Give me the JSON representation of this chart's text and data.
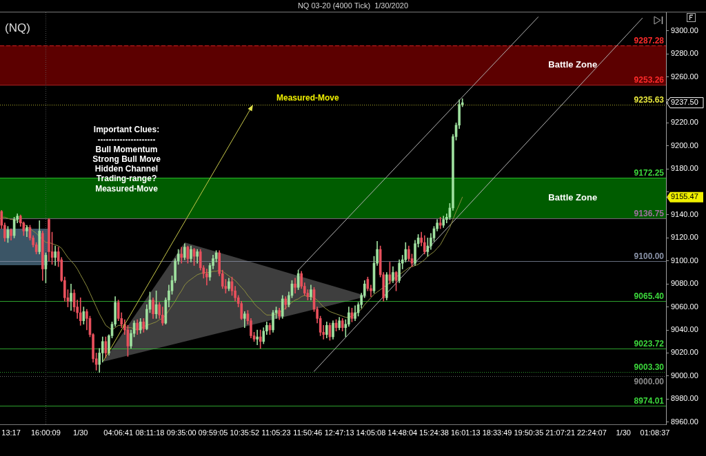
{
  "chart_data": {
    "type": "candlestick",
    "title": "NQ 03-20 (4000 Tick)  1/30/2020",
    "subtitle": "(NQ)",
    "categories": [
      null,
      null,
      null,
      "13:17",
      null,
      null,
      null,
      null,
      null,
      null,
      null,
      null,
      null,
      null,
      "16:00:09",
      null,
      null,
      null,
      null,
      null,
      null,
      null,
      null,
      null,
      null,
      "1/30",
      null,
      null,
      null,
      null,
      null,
      null,
      null,
      null,
      null,
      null,
      null,
      "04:06:41",
      null,
      null,
      null,
      null,
      null,
      null,
      null,
      null,
      null,
      "08:11:18",
      null,
      null,
      null,
      null,
      null,
      null,
      null,
      null,
      null,
      "09:35:00",
      null,
      null,
      null,
      null,
      null,
      null,
      null,
      null,
      null,
      "09:59:05",
      null,
      null,
      null,
      null,
      null,
      null,
      null,
      null,
      null,
      "10:35:52",
      null,
      null,
      null,
      null,
      null,
      null,
      null,
      null,
      null,
      "11:05:23",
      null,
      null,
      null,
      null,
      null,
      null,
      null,
      null,
      null,
      "11:50:46",
      null,
      null,
      null,
      null,
      null,
      null,
      null,
      null,
      null,
      "12:47:13",
      null,
      null,
      null,
      null,
      null,
      null,
      null,
      null,
      null,
      "14:05:08",
      null,
      null,
      null,
      null,
      null,
      null,
      null,
      null,
      null,
      "14:48:04",
      null,
      null,
      null,
      null,
      null,
      null,
      null,
      null,
      null,
      "15:24:38",
      null,
      null,
      null,
      null,
      null,
      null,
      null,
      null,
      null,
      "16:01:13",
      null,
      null,
      null,
      null,
      null,
      null,
      null,
      null,
      null,
      "18:33:49",
      null,
      null,
      null,
      null,
      null,
      null,
      null,
      null,
      null,
      "19:50:35",
      null,
      null,
      null,
      null,
      null,
      null,
      null,
      null,
      null,
      "21:07:21",
      null,
      null,
      null,
      null,
      null,
      null,
      null,
      null,
      null,
      "22:24:07",
      null,
      null,
      null,
      null,
      null,
      null,
      null,
      null,
      null,
      "1/30",
      null,
      null,
      null,
      null,
      null,
      null,
      null,
      null,
      null,
      "01:08:37",
      null,
      null,
      null
    ],
    "ohlc": [
      [
        9143,
        9144,
        9128,
        9131
      ],
      [
        9131,
        9133,
        9117,
        9120
      ],
      [
        9120,
        9130,
        9116,
        9127
      ],
      [
        9127,
        9128,
        9118,
        9122
      ],
      [
        9122,
        9138,
        9120,
        9136
      ],
      [
        9136,
        9141,
        9133,
        9139
      ],
      [
        9139,
        9140,
        9130,
        9133
      ],
      [
        9133,
        9134,
        9122,
        9126
      ],
      [
        9126,
        9131,
        9121,
        9129
      ],
      [
        9129,
        9131,
        9118,
        9120
      ],
      [
        9120,
        9122,
        9112,
        9114
      ],
      [
        9114,
        9116,
        9106,
        9108
      ],
      [
        9108,
        9135,
        9106,
        9126
      ],
      [
        9124,
        9126,
        9083,
        9093
      ],
      [
        9093,
        9107,
        9081,
        9105
      ],
      [
        9136,
        9137,
        9100,
        9108
      ],
      [
        9108,
        9125,
        9097,
        9103
      ],
      [
        9103,
        9113,
        9096,
        9108
      ],
      [
        9108,
        9112,
        9095,
        9100
      ],
      [
        9101,
        9103,
        9082,
        9083
      ],
      [
        9083,
        9086,
        9065,
        9068
      ],
      [
        9068,
        9075,
        9060,
        9065
      ],
      [
        9065,
        9080,
        9057,
        9072
      ],
      [
        9072,
        9075,
        9056,
        9060
      ],
      [
        9060,
        9066,
        9050,
        9055
      ],
      [
        9055,
        9068,
        9044,
        9048
      ],
      [
        9048,
        9060,
        9045,
        9056
      ],
      [
        9056,
        9058,
        9040,
        9050
      ],
      [
        9050,
        9052,
        9034,
        9036
      ],
      [
        9036,
        9037,
        9012,
        9015
      ],
      [
        9015,
        9020,
        9005,
        9010
      ],
      [
        9010,
        9024,
        9003,
        9020
      ],
      [
        9020,
        9034,
        9012,
        9030
      ],
      [
        9030,
        9034,
        9016,
        9020
      ],
      [
        9020,
        9036,
        9018,
        9035
      ],
      [
        9035,
        9047,
        9033,
        9045
      ],
      [
        9045,
        9069,
        9043,
        9064
      ],
      [
        9064,
        9066,
        9048,
        9050
      ],
      [
        9050,
        9055,
        9042,
        9045
      ],
      [
        9045,
        9049,
        9036,
        9040
      ],
      [
        9040,
        9044,
        9017,
        9026
      ],
      [
        9026,
        9040,
        9024,
        9037
      ],
      [
        9037,
        9048,
        9034,
        9046
      ],
      [
        9046,
        9049,
        9036,
        9040
      ],
      [
        9040,
        9050,
        9037,
        9047
      ],
      [
        9047,
        9050,
        9038,
        9041
      ],
      [
        9041,
        9062,
        9040,
        9058
      ],
      [
        9058,
        9073,
        9055,
        9066
      ],
      [
        9066,
        9068,
        9050,
        9054
      ],
      [
        9054,
        9074,
        9050,
        9062
      ],
      [
        9062,
        9064,
        9050,
        9053
      ],
      [
        9053,
        9060,
        9044,
        9046
      ],
      [
        9046,
        9068,
        9045,
        9066
      ],
      [
        9066,
        9079,
        9060,
        9074
      ],
      [
        9074,
        9087,
        9071,
        9083
      ],
      [
        9083,
        9102,
        9081,
        9100
      ],
      [
        9100,
        9110,
        9097,
        9106
      ],
      [
        9106,
        9112,
        9098,
        9103
      ],
      [
        9103,
        9115,
        9101,
        9112
      ],
      [
        9112,
        9113,
        9098,
        9102
      ],
      [
        9102,
        9113,
        9099,
        9110
      ],
      [
        9110,
        9111,
        9096,
        9104
      ],
      [
        9104,
        9110,
        9098,
        9108
      ],
      [
        9108,
        9110,
        9092,
        9094
      ],
      [
        9094,
        9096,
        9085,
        9089
      ],
      [
        9089,
        9093,
        9079,
        9086
      ],
      [
        9086,
        9098,
        9083,
        9096
      ],
      [
        9096,
        9105,
        9093,
        9102
      ],
      [
        9102,
        9109,
        9099,
        9107
      ],
      [
        9107,
        9109,
        9087,
        9089
      ],
      [
        9089,
        9092,
        9076,
        9078
      ],
      [
        9078,
        9084,
        9072,
        9076
      ],
      [
        9076,
        9085,
        9074,
        9082
      ],
      [
        9082,
        9086,
        9070,
        9074
      ],
      [
        9074,
        9078,
        9065,
        9068
      ],
      [
        9068,
        9070,
        9060,
        9063
      ],
      [
        9063,
        9065,
        9049,
        9050
      ],
      [
        9050,
        9056,
        9042,
        9054
      ],
      [
        9054,
        9057,
        9045,
        9048
      ],
      [
        9048,
        9050,
        9033,
        9035
      ],
      [
        9035,
        9038,
        9030,
        9032
      ],
      [
        9032,
        9040,
        9027,
        9034
      ],
      [
        9034,
        9040,
        9024,
        9030
      ],
      [
        9030,
        9042,
        9028,
        9039
      ],
      [
        9039,
        9047,
        9036,
        9044
      ],
      [
        9044,
        9046,
        9036,
        9040
      ],
      [
        9040,
        9057,
        9038,
        9055
      ],
      [
        9055,
        9060,
        9050,
        9057
      ],
      [
        9057,
        9059,
        9049,
        9052
      ],
      [
        9052,
        9070,
        9050,
        9067
      ],
      [
        9067,
        9069,
        9058,
        9062
      ],
      [
        9062,
        9073,
        9060,
        9070
      ],
      [
        9070,
        9083,
        9068,
        9080
      ],
      [
        9080,
        9085,
        9072,
        9077
      ],
      [
        9077,
        9092,
        9075,
        9089
      ],
      [
        9089,
        9091,
        9076,
        9078
      ],
      [
        9078,
        9081,
        9070,
        9072
      ],
      [
        9072,
        9075,
        9066,
        9069
      ],
      [
        9069,
        9079,
        9066,
        9075
      ],
      [
        9075,
        9077,
        9056,
        9058
      ],
      [
        9058,
        9060,
        9046,
        9050
      ],
      [
        9050,
        9052,
        9035,
        9038
      ],
      [
        9038,
        9044,
        9032,
        9036
      ],
      [
        9036,
        9047,
        9033,
        9044
      ],
      [
        9044,
        9046,
        9031,
        9034
      ],
      [
        9034,
        9048,
        9032,
        9046
      ],
      [
        9046,
        9049,
        9039,
        9042
      ],
      [
        9042,
        9051,
        9040,
        9048
      ],
      [
        9048,
        9050,
        9039,
        9042
      ],
      [
        9042,
        9049,
        9034,
        9045
      ],
      [
        9045,
        9060,
        9043,
        9055
      ],
      [
        9055,
        9059,
        9047,
        9050
      ],
      [
        9050,
        9061,
        9048,
        9055
      ],
      [
        9055,
        9064,
        9052,
        9062
      ],
      [
        9062,
        9072,
        9059,
        9070
      ],
      [
        9070,
        9083,
        9068,
        9080
      ],
      [
        9084,
        9086,
        9074,
        9076
      ],
      [
        9076,
        9079,
        9069,
        9074
      ],
      [
        9074,
        9104,
        9072,
        9098
      ],
      [
        9098,
        9117,
        9096,
        9110
      ],
      [
        9110,
        9113,
        9086,
        9088
      ],
      [
        9088,
        9090,
        9065,
        9068
      ],
      [
        9068,
        9090,
        9066,
        9088
      ],
      [
        9088,
        9099,
        9080,
        9083
      ],
      [
        9083,
        9095,
        9081,
        9090
      ],
      [
        9090,
        9091,
        9074,
        9083
      ],
      [
        9083,
        9101,
        9081,
        9098
      ],
      [
        9098,
        9105,
        9093,
        9101
      ],
      [
        9101,
        9116,
        9099,
        9110
      ],
      [
        9110,
        9113,
        9100,
        9102
      ],
      [
        9102,
        9106,
        9095,
        9098
      ],
      [
        9098,
        9118,
        9096,
        9115
      ],
      [
        9115,
        9123,
        9112,
        9120
      ],
      [
        9120,
        9125,
        9113,
        9116
      ],
      [
        9116,
        9122,
        9106,
        9108
      ],
      [
        9108,
        9120,
        9104,
        9113
      ],
      [
        9113,
        9124,
        9110,
        9120
      ],
      [
        9120,
        9130,
        9117,
        9128
      ],
      [
        9128,
        9136,
        9126,
        9133
      ],
      [
        9133,
        9138,
        9128,
        9131
      ],
      [
        9131,
        9139,
        9129,
        9136
      ],
      [
        9136,
        9141,
        9133,
        9138
      ],
      [
        9138,
        9150,
        9136,
        9146
      ],
      [
        9146,
        9210,
        9144,
        9208
      ],
      [
        9208,
        9220,
        9205,
        9218
      ],
      [
        9218,
        9240,
        9215,
        9236
      ],
      [
        9236,
        9241,
        9234,
        9237.5
      ],
      null,
      null,
      null,
      null,
      null,
      null,
      null,
      null,
      null,
      null,
      null,
      null,
      null,
      null,
      null,
      null,
      null,
      null,
      null,
      null,
      null,
      null,
      null,
      null,
      null,
      null,
      null,
      null,
      null,
      null,
      null,
      null,
      null,
      null,
      null,
      null,
      null,
      null,
      null,
      null,
      null,
      null,
      null,
      null,
      null,
      null,
      null,
      null,
      null,
      null,
      null,
      null,
      null,
      null,
      null,
      null,
      null,
      null,
      null,
      null,
      null,
      null,
      null,
      null
    ],
    "colors": [
      "#e8505c",
      "#e8505c",
      "#9fe09f",
      "#e8505c",
      "#9fe09f",
      "#9fe09f",
      "#e8505c",
      "#e8505c",
      "#9fe09f",
      "#e8505c",
      "#e8505c",
      "#e8505c",
      "#9fe09f",
      "#e8505c",
      "#9fe09f",
      "#e8505c",
      "#e8505c",
      "#9fe09f",
      "#e8505c",
      "#e8505c",
      "#e8505c",
      "#e8505c",
      "#9fe09f",
      "#e8505c",
      "#e8505c",
      "#e8505c",
      "#9fe09f",
      "#e8505c",
      "#e8505c",
      "#e8505c",
      "#e8505c",
      "#9fe09f",
      "#9fe09f",
      "#e8505c",
      "#9fe09f",
      "#9fe09f",
      "#9fe09f",
      "#e8505c",
      "#e8505c",
      "#e8505c",
      "#e8505c",
      "#9fe09f",
      "#9fe09f",
      "#e8505c",
      "#9fe09f",
      "#e8505c",
      "#9fe09f",
      "#9fe09f",
      "#e8505c",
      "#9fe09f",
      "#e8505c",
      "#e8505c",
      "#9fe09f",
      "#9fe09f",
      "#9fe09f",
      "#9fe09f",
      "#9fe09f",
      "#e8505c",
      "#9fe09f",
      "#e8505c",
      "#9fe09f",
      "#e8505c",
      "#9fe09f",
      "#e8505c",
      "#e8505c",
      "#e8505c",
      "#9fe09f",
      "#9fe09f",
      "#9fe09f",
      "#e8505c",
      "#e8505c",
      "#e8505c",
      "#9fe09f",
      "#e8505c",
      "#e8505c",
      "#e8505c",
      "#e8505c",
      "#9fe09f",
      "#e8505c",
      "#e8505c",
      "#e8505c",
      "#9fe09f",
      "#e8505c",
      "#9fe09f",
      "#9fe09f",
      "#e8505c",
      "#9fe09f",
      "#9fe09f",
      "#e8505c",
      "#9fe09f",
      "#e8505c",
      "#9fe09f",
      "#9fe09f",
      "#e8505c",
      "#9fe09f",
      "#e8505c",
      "#e8505c",
      "#e8505c",
      "#9fe09f",
      "#e8505c",
      "#e8505c",
      "#e8505c",
      "#e8505c",
      "#9fe09f",
      "#e8505c",
      "#9fe09f",
      "#e8505c",
      "#9fe09f",
      "#e8505c",
      "#9fe09f",
      "#9fe09f",
      "#e8505c",
      "#9fe09f",
      "#9fe09f",
      "#9fe09f",
      "#9fe09f",
      "#e8505c",
      "#e8505c",
      "#9fe09f",
      "#9fe09f",
      "#e8505c",
      "#e8505c",
      "#9fe09f",
      "#e8505c",
      "#9fe09f",
      "#e8505c",
      "#9fe09f",
      "#9fe09f",
      "#9fe09f",
      "#e8505c",
      "#e8505c",
      "#9fe09f",
      "#9fe09f",
      "#e8505c",
      "#e8505c",
      "#9fe09f",
      "#9fe09f",
      "#9fe09f",
      "#9fe09f",
      "#e8505c",
      "#9fe09f",
      "#9fe09f",
      "#9fe09f",
      "#9fe09f",
      "#9fe09f",
      "#9fe09f",
      "#9fe09f",
      null,
      null,
      null,
      null,
      null,
      null,
      null,
      null,
      null,
      null,
      null,
      null,
      null,
      null,
      null,
      null,
      null,
      null,
      null,
      null,
      null,
      null,
      null,
      null,
      null,
      null,
      null,
      null,
      null,
      null,
      null,
      null,
      null,
      null,
      null,
      null,
      null,
      null,
      null,
      null,
      null,
      null,
      null,
      null,
      null,
      null,
      null,
      null,
      null,
      null,
      null,
      null,
      null,
      null,
      null,
      null,
      null,
      null,
      null,
      null,
      null,
      null,
      null,
      null
    ],
    "series": [
      {
        "type": "line",
        "color": "#8e8e3e",
        "values": [
          9138,
          9138,
          9137,
          9136,
          9136,
          9135,
          9134,
          9132,
          9130,
          9128,
          9126,
          9124,
          9121,
          9119,
          9116,
          9116,
          9115,
          9114,
          9113,
          9111,
          9107,
          9103,
          9100,
          9097,
          9093,
          9088,
          9083,
          9078,
          9072,
          9066,
          9060,
          9054,
          9049,
          9044,
          9042,
          9040,
          9042,
          9044,
          9044,
          9043,
          9042,
          9042,
          9041,
          9040,
          9041,
          9043,
          9044,
          9045,
          9046,
          9047,
          9049,
          9050,
          9053,
          9057,
          9061,
          9065,
          9070,
          9074,
          9079,
          9082,
          9084,
          9086,
          9088,
          9089,
          9090,
          9090,
          9090,
          9091,
          9091,
          9092,
          9091,
          9089,
          9087,
          9085,
          9083,
          9080,
          9077,
          9074,
          9070,
          9067,
          9063,
          9060,
          9058,
          9055,
          9053,
          9053,
          9053,
          9054,
          9055,
          9057,
          9059,
          9062,
          9064,
          9066,
          9067,
          9069,
          9070,
          9069,
          9069,
          9068,
          9066,
          9063,
          9060,
          9058,
          9056,
          9055,
          9054,
          9053,
          9052,
          9051,
          9051,
          9052,
          9054,
          9056,
          9058,
          9062,
          9065,
          9068,
          9071,
          9073,
          9075,
          9077,
          9079,
          9081,
          9084,
          9086,
          9088,
          9090,
          9092,
          9094,
          9095,
          9096,
          9097,
          9099,
          9101,
          9104,
          9106,
          9108,
          9111,
          9114,
          9119,
          9124,
          9129,
          9136,
          9143,
          9149,
          9155.47,
          null,
          null,
          null,
          null,
          null,
          null,
          null,
          null,
          null,
          null,
          null,
          null,
          null,
          null,
          null,
          null,
          null,
          null,
          null,
          null,
          null,
          null,
          null,
          null,
          null,
          null,
          null,
          null,
          null,
          null,
          null,
          null,
          null,
          null,
          null,
          null,
          null,
          null,
          null,
          null,
          null,
          null,
          null,
          null,
          null,
          null,
          null,
          null,
          null,
          null,
          null,
          null,
          null,
          null,
          null,
          null,
          null,
          null,
          null,
          null,
          null,
          null,
          null,
          null
        ]
      },
      {
        "type": "line",
        "color": "#b4b4b4",
        "values": [
          null,
          null,
          null,
          null,
          null,
          null,
          null,
          null,
          null,
          null,
          null,
          null,
          null,
          null,
          null,
          null,
          null,
          null,
          null,
          null,
          null,
          null,
          null,
          null,
          null,
          null,
          null,
          null,
          null,
          null,
          null,
          null,
          null,
          null,
          null,
          null,
          null,
          null,
          null,
          null,
          null,
          null,
          null,
          null,
          null,
          null,
          null,
          null,
          null,
          null,
          null,
          null,
          null,
          null,
          null,
          null,
          null,
          null,
          null,
          null,
          null,
          null,
          null,
          null,
          null,
          null,
          null,
          null,
          null,
          null,
          null,
          null,
          null,
          null,
          null,
          null,
          null,
          null,
          null,
          null,
          null,
          null,
          null,
          null,
          null,
          null,
          null,
          null,
          null,
          null,
          null,
          null,
          null,
          null,
          9092,
          null,
          null,
          null,
          null,
          null,
          null,
          null,
          null,
          null,
          null,
          null,
          null,
          null,
          null,
          null,
          null,
          null,
          null,
          null,
          null,
          null,
          null,
          null,
          null,
          null,
          null,
          null,
          null,
          null,
          null,
          null,
          null,
          null,
          null,
          null,
          null,
          null,
          null,
          null,
          null,
          null,
          null,
          null,
          null,
          null,
          null,
          null,
          null,
          null,
          null,
          null,
          null,
          null,
          null,
          null,
          null,
          null,
          null,
          null,
          null,
          null,
          null,
          null,
          null,
          null,
          null,
          null,
          null,
          null,
          null,
          null,
          null,
          null,
          null,
          null,
          9312,
          null,
          null,
          null,
          null,
          null,
          null,
          null,
          null,
          null,
          null,
          null,
          null,
          null,
          null,
          null,
          null,
          null,
          null,
          null,
          null,
          null,
          null,
          null,
          null,
          null,
          null,
          null,
          null,
          null,
          null,
          null,
          null,
          null,
          null,
          null,
          null,
          null,
          null,
          null,
          null
        ]
      },
      {
        "type": "line",
        "color": "#b4b4b4",
        "values": [
          null,
          null,
          null,
          null,
          null,
          null,
          null,
          null,
          null,
          null,
          null,
          null,
          null,
          null,
          null,
          null,
          null,
          null,
          null,
          null,
          null,
          null,
          null,
          null,
          null,
          null,
          null,
          null,
          null,
          null,
          null,
          null,
          null,
          null,
          null,
          null,
          null,
          null,
          null,
          null,
          null,
          null,
          null,
          null,
          null,
          null,
          null,
          null,
          null,
          null,
          null,
          null,
          null,
          null,
          null,
          null,
          null,
          null,
          null,
          null,
          null,
          null,
          null,
          null,
          null,
          null,
          null,
          null,
          null,
          null,
          null,
          null,
          null,
          null,
          null,
          null,
          null,
          null,
          null,
          null,
          null,
          null,
          null,
          null,
          null,
          null,
          null,
          null,
          null,
          null,
          null,
          null,
          null,
          null,
          null,
          null,
          null,
          null,
          null,
          9004,
          null,
          null,
          null,
          null,
          null,
          null,
          null,
          null,
          null,
          null,
          null,
          null,
          null,
          null,
          null,
          null,
          null,
          null,
          null,
          null,
          null,
          null,
          null,
          null,
          null,
          null,
          null,
          null,
          null,
          null,
          null,
          null,
          null,
          null,
          null,
          null,
          null,
          null,
          null,
          null,
          null,
          null,
          null,
          null,
          null,
          null,
          null,
          null,
          null,
          null,
          null,
          null,
          null,
          null,
          null,
          null,
          null,
          null,
          null,
          null,
          null,
          null,
          null,
          null,
          null,
          null,
          null,
          null,
          null,
          null,
          null,
          null,
          null,
          null,
          null,
          null,
          null,
          null,
          null,
          null,
          null,
          null,
          null,
          null,
          null,
          null,
          null,
          null,
          null,
          null,
          null,
          null,
          null,
          null,
          null,
          null,
          null,
          null,
          null,
          null,
          null,
          null,
          null,
          9311,
          null,
          null,
          null,
          null,
          null,
          null,
          null
        ]
      }
    ],
    "ylim": [
      8958,
      9316
    ],
    "yticks": [
      {
        "value": 8960,
        "label": "8960.00"
      },
      {
        "value": 8980,
        "label": "8980.00"
      },
      {
        "value": 9000,
        "label": "9000.00"
      },
      {
        "value": 9020,
        "label": "9020.00"
      },
      {
        "value": 9040,
        "label": "9040.00"
      },
      {
        "value": 9060,
        "label": "9060.00"
      },
      {
        "value": 9080,
        "label": "9080.00"
      },
      {
        "value": 9100,
        "label": "9100.00"
      },
      {
        "value": 9120,
        "label": "9120.00"
      },
      {
        "value": 9140,
        "label": "9140.00"
      },
      {
        "value": 9155.47,
        "label": "9155.47"
      },
      {
        "value": 9160,
        "label": null
      },
      {
        "value": 9180,
        "label": "9180.00"
      },
      {
        "value": 9200,
        "label": "9200.00"
      },
      {
        "value": 9220,
        "label": "9220.00"
      },
      {
        "value": 9237.5,
        "label": "9237.50"
      },
      {
        "value": 9240,
        "label": null
      },
      {
        "value": 9260,
        "label": "9260.00"
      },
      {
        "value": 9280,
        "label": "9280.00"
      },
      {
        "value": 9300,
        "label": "9300.00"
      }
    ],
    "bands": [
      {
        "axis": "y",
        "from": 9253.26,
        "to": 9287.28,
        "label": "Battle Zone",
        "color": "#5c0000"
      },
      {
        "axis": "y",
        "from": 9136.75,
        "to": 9172.25,
        "label": "Battle Zone",
        "color": "#005c00"
      }
    ],
    "ref_lines": [
      {
        "axis": "y",
        "value": 9287.28,
        "label": "9287.28",
        "color": "#ff2a2a",
        "line_style": "dashed"
      },
      {
        "axis": "y",
        "value": 9253.26,
        "label": "9253.26",
        "color": "#ff2a2a"
      },
      {
        "axis": "y",
        "value": 9235.63,
        "label": "9235.63",
        "color": "#e8e83c",
        "line_style": "dotted"
      },
      {
        "axis": "y",
        "value": 9172.25,
        "label": "9172.25",
        "color": "#3cd83c"
      },
      {
        "axis": "y",
        "value": 9136.75,
        "label": "9136.75",
        "color": "#a070a0"
      },
      {
        "axis": "y",
        "value": 9100,
        "label": "9100.00",
        "color": "#8a93a8"
      },
      {
        "axis": "y",
        "value": 9065.4,
        "label": "9065.40",
        "color": "#3cd83c"
      },
      {
        "axis": "y",
        "value": 9023.72,
        "label": "9023.72",
        "color": "#3cd83c"
      },
      {
        "axis": "y",
        "value": 9003.3,
        "label": "9003.30",
        "color": "#3cd83c",
        "line_style": "dotted"
      },
      {
        "axis": "y",
        "value": 9000,
        "label": "9000.00",
        "color": "#8a8a8a",
        "line_style": "dotted"
      },
      {
        "axis": "y",
        "value": 8974.01,
        "label": "8974.01",
        "color": "#3cd83c"
      },
      {
        "axis": "x",
        "value": "16:00:09",
        "color": "#6a6a6a",
        "line_style": "dotted"
      }
    ],
    "annotations": [
      "Important Clues:",
      "---------------------",
      "Bull Momentum",
      "Strong Bull Move",
      "Hidden Channel",
      "Trading-range?",
      "Measured-Move",
      {
        "text": "Measured-Move",
        "x": "11:50:46",
        "y": 9235.63
      }
    ]
  }
}
